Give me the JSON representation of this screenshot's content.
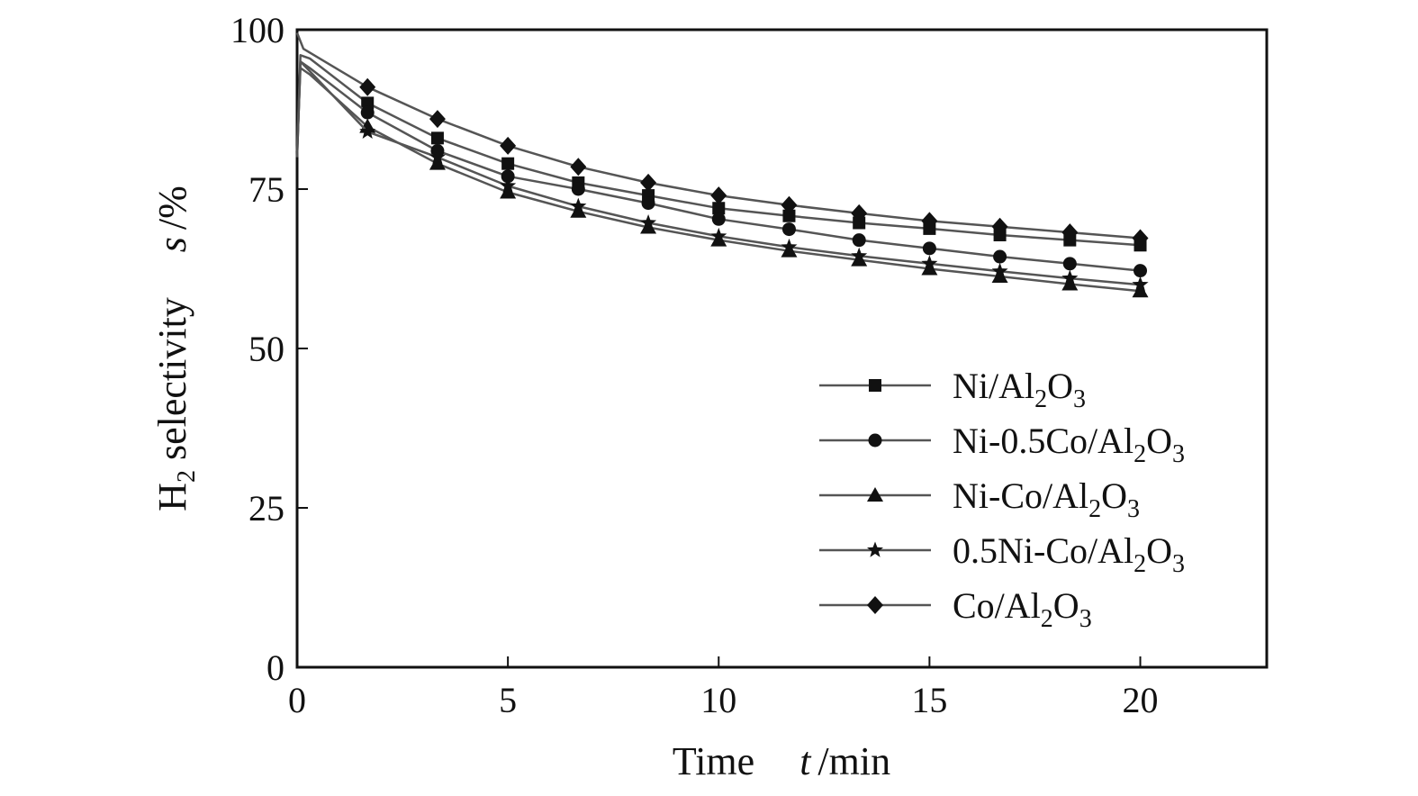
{
  "chart_data": {
    "type": "line",
    "xlabel": {
      "main": "Time",
      "var": "t",
      "unit": "/min"
    },
    "ylabel": {
      "prefix": "H",
      "sub": "2",
      "main": " selectivity",
      "var": "s",
      "unit": "/%"
    },
    "xlim": [
      0,
      23
    ],
    "ylim": [
      0,
      100
    ],
    "xticks": [
      0,
      5,
      10,
      15,
      20
    ],
    "yticks": [
      0,
      25,
      50,
      75,
      100
    ],
    "x": [
      1.67,
      3.33,
      5.0,
      6.67,
      8.33,
      10.0,
      11.67,
      13.33,
      15.0,
      16.67,
      18.33,
      20.0
    ],
    "series": [
      {
        "name": "Ni/Al2O3",
        "label_parts": [
          {
            "t": "Ni/Al"
          },
          {
            "t": "2",
            "sub": true
          },
          {
            "t": "O"
          },
          {
            "t": "3",
            "sub": true
          }
        ],
        "marker": "square",
        "start": [
          [
            0,
            81
          ],
          [
            0.08,
            96
          ],
          [
            0.3,
            95.5
          ]
        ],
        "values": [
          88.5,
          83,
          79,
          76,
          74,
          72,
          70.8,
          69.7,
          68.8,
          67.8,
          67,
          66.2
        ]
      },
      {
        "name": "Ni-0.5Co/Al2O3",
        "label_parts": [
          {
            "t": "Ni-0.5Co/Al"
          },
          {
            "t": "2",
            "sub": true
          },
          {
            "t": "O"
          },
          {
            "t": "3",
            "sub": true
          }
        ],
        "marker": "circle",
        "start": [
          [
            0,
            80
          ],
          [
            0.08,
            95
          ],
          [
            0.3,
            94
          ]
        ],
        "values": [
          87,
          81,
          77,
          75,
          72.8,
          70.3,
          68.7,
          67,
          65.7,
          64.4,
          63.3,
          62.2
        ]
      },
      {
        "name": "Ni-Co/Al2O3",
        "label_parts": [
          {
            "t": "Ni-Co/Al"
          },
          {
            "t": "2",
            "sub": true
          },
          {
            "t": "O"
          },
          {
            "t": "3",
            "sub": true
          }
        ],
        "marker": "triangle",
        "start": [
          [
            0,
            81
          ],
          [
            0.08,
            94
          ],
          [
            0.3,
            93
          ]
        ],
        "values": [
          84.8,
          79,
          74.5,
          71.5,
          69,
          67,
          65.3,
          63.9,
          62.5,
          61.3,
          60.1,
          59
        ]
      },
      {
        "name": "0.5Ni-Co/Al2O3",
        "label_parts": [
          {
            "t": "0.5Ni-Co/Al"
          },
          {
            "t": "2",
            "sub": true
          },
          {
            "t": "O"
          },
          {
            "t": "3",
            "sub": true
          }
        ],
        "marker": "star",
        "start": [
          [
            0,
            80
          ],
          [
            0.08,
            95
          ],
          [
            0.3,
            93.5
          ]
        ],
        "values": [
          84,
          80,
          75.5,
          72.3,
          69.7,
          67.6,
          65.9,
          64.5,
          63.3,
          62.1,
          61,
          60
        ]
      },
      {
        "name": "Co/Al2O3",
        "label_parts": [
          {
            "t": "Co/Al"
          },
          {
            "t": "2",
            "sub": true
          },
          {
            "t": "O"
          },
          {
            "t": "3",
            "sub": true
          }
        ],
        "marker": "diamond",
        "start": [
          [
            0,
            99.5
          ],
          [
            0.15,
            97
          ]
        ],
        "values": [
          91,
          86,
          81.8,
          78.5,
          76,
          74,
          72.5,
          71.2,
          70,
          69.1,
          68.2,
          67.3
        ]
      }
    ],
    "legend_position": "bottom-right",
    "grid": false
  }
}
